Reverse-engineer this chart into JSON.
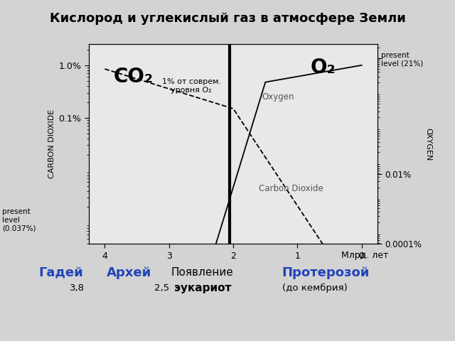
{
  "title": "Кислород и углекислый газ в атмосфере Земли",
  "left_ylabel": "CARBON DIOXIDE",
  "right_ylabel": "OXYGEN",
  "vertical_line_x": 2.05,
  "bg_color": "#d3d3d3",
  "plot_bg_color": "#e8e8e8",
  "co2_label": "CO₂",
  "o2_label": "O₂",
  "annotation_1pct": "1% от соврем.\nуровня O₂",
  "oxygen_text": "Oxygen",
  "co2_text": "Carbon Dioxide",
  "present_left": "present\nlevel\n(0.037%)",
  "present_right": "present\nlevel (21%)",
  "mlrd": "Млрд. лет",
  "era1": "Гадей",
  "era2": "Архей",
  "era3_line1": "Появление",
  "era3_line2": "эукариот",
  "era4": "Протерозой",
  "era4_sub": "(до кембрия)",
  "num1": "3,8",
  "num2": "2,5"
}
